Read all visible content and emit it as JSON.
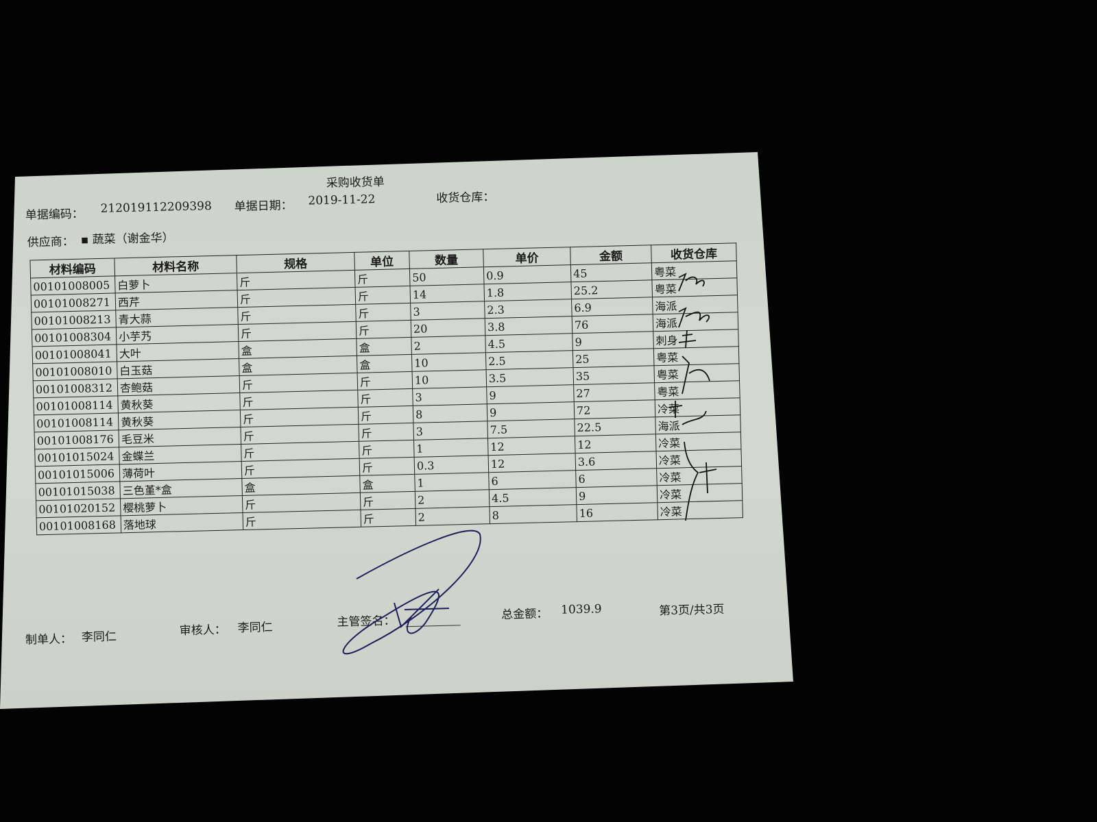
{
  "document": {
    "title": "采购收货单",
    "doc_no_label": "单据编码：",
    "doc_no": "212019112209398",
    "date_label": "单据日期：",
    "date": "2019-11-22",
    "warehouse_label": "收货仓库：",
    "supplier_label": "供应商：",
    "supplier": "▪ 蔬菜（谢金华）"
  },
  "table": {
    "headers": [
      "材料编码",
      "材料名称",
      "规格",
      "单位",
      "数量",
      "单价",
      "金额",
      "收货仓库"
    ],
    "rows": [
      [
        "00101008005",
        "白萝卜",
        "斤",
        "斤",
        "50",
        "0.9",
        "45",
        "粤菜"
      ],
      [
        "00101008271",
        "西芹",
        "斤",
        "斤",
        "14",
        "1.8",
        "25.2",
        "粤菜"
      ],
      [
        "00101008213",
        "青大蒜",
        "斤",
        "斤",
        "3",
        "2.3",
        "6.9",
        "海派"
      ],
      [
        "00101008304",
        "小芋艿",
        "斤",
        "斤",
        "20",
        "3.8",
        "76",
        "海派"
      ],
      [
        "00101008041",
        "大叶",
        "盒",
        "盒",
        "2",
        "4.5",
        "9",
        "刺身"
      ],
      [
        "00101008010",
        "白玉菇",
        "盒",
        "盒",
        "10",
        "2.5",
        "25",
        "粤菜"
      ],
      [
        "00101008312",
        "杏鲍菇",
        "斤",
        "斤",
        "10",
        "3.5",
        "35",
        "粤菜"
      ],
      [
        "00101008114",
        "黄秋葵",
        "斤",
        "斤",
        "3",
        "9",
        "27",
        "粤菜"
      ],
      [
        "00101008114",
        "黄秋葵",
        "斤",
        "斤",
        "8",
        "9",
        "72",
        "冷菜"
      ],
      [
        "00101008176",
        "毛豆米",
        "斤",
        "斤",
        "3",
        "7.5",
        "22.5",
        "海派"
      ],
      [
        "00101015024",
        "金蝶兰",
        "斤",
        "斤",
        "1",
        "12",
        "12",
        "冷菜"
      ],
      [
        "00101015006",
        "薄荷叶",
        "斤",
        "斤",
        "0.3",
        "12",
        "3.6",
        "冷菜"
      ],
      [
        "00101015038",
        "三色堇*盒",
        "盒",
        "盒",
        "1",
        "6",
        "6",
        "冷菜"
      ],
      [
        "00101020152",
        "樱桃萝卜",
        "斤",
        "斤",
        "2",
        "4.5",
        "9",
        "冷菜"
      ],
      [
        "00101008168",
        "落地球",
        "斤",
        "斤",
        "2",
        "8",
        "16",
        "冷菜"
      ]
    ]
  },
  "footer": {
    "maker_label": "制单人：",
    "maker": "李同仁",
    "reviewer_label": "审核人：",
    "reviewer": "李同仁",
    "supervisor_label": "主管签名：",
    "total_label": "总金额：",
    "total": "1039.9",
    "page": "第3页/共3页"
  },
  "colors": {
    "paper": "#d0d6ce",
    "background": "#030303",
    "ink": "#1a1a1a",
    "signature_ink": "#1c1f5a"
  }
}
